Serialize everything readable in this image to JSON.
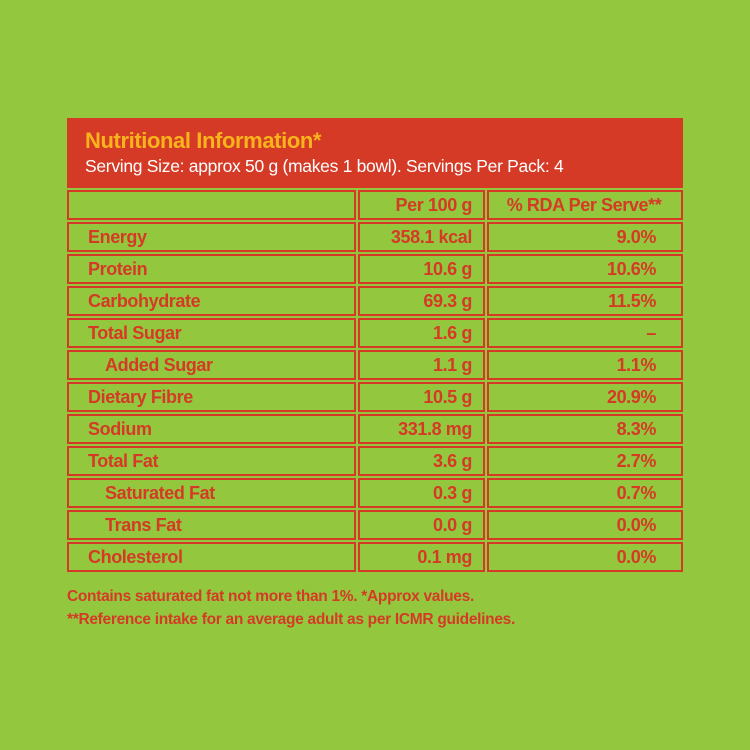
{
  "colors": {
    "background": "#93C83E",
    "red": "#D53A26",
    "yellow": "#F9B41C",
    "text-light": "#FFFFFF"
  },
  "header": {
    "title": "Nutritional Information*",
    "serving_info": "Serving Size: approx 50 g (makes 1 bowl). Servings Per Pack: 4"
  },
  "table": {
    "columns": [
      "",
      "Per 100 g",
      "% RDA Per Serve**"
    ],
    "rows": [
      {
        "label": "Energy",
        "indent": false,
        "per_100g": "358.1 kcal",
        "rda_per_serve": "9.0%"
      },
      {
        "label": "Protein",
        "indent": false,
        "per_100g": "10.6 g",
        "rda_per_serve": "10.6%"
      },
      {
        "label": "Carbohydrate",
        "indent": false,
        "per_100g": "69.3 g",
        "rda_per_serve": "11.5%"
      },
      {
        "label": "Total Sugar",
        "indent": false,
        "per_100g": "1.6 g",
        "rda_per_serve": "–"
      },
      {
        "label": "Added Sugar",
        "indent": true,
        "per_100g": "1.1 g",
        "rda_per_serve": "1.1%"
      },
      {
        "label": "Dietary Fibre",
        "indent": false,
        "per_100g": "10.5 g",
        "rda_per_serve": "20.9%"
      },
      {
        "label": "Sodium",
        "indent": false,
        "per_100g": "331.8 mg",
        "rda_per_serve": "8.3%"
      },
      {
        "label": "Total Fat",
        "indent": false,
        "per_100g": "3.6 g",
        "rda_per_serve": "2.7%"
      },
      {
        "label": "Saturated Fat",
        "indent": true,
        "per_100g": "0.3 g",
        "rda_per_serve": "0.7%"
      },
      {
        "label": "Trans Fat",
        "indent": true,
        "per_100g": "0.0 g",
        "rda_per_serve": "0.0%"
      },
      {
        "label": "Cholesterol",
        "indent": false,
        "per_100g": "0.1 mg",
        "rda_per_serve": "0.0%"
      }
    ]
  },
  "footnotes": [
    "Contains saturated fat not more than 1%. *Approx values.",
    "**Reference intake for an average adult as per ICMR guidelines."
  ]
}
